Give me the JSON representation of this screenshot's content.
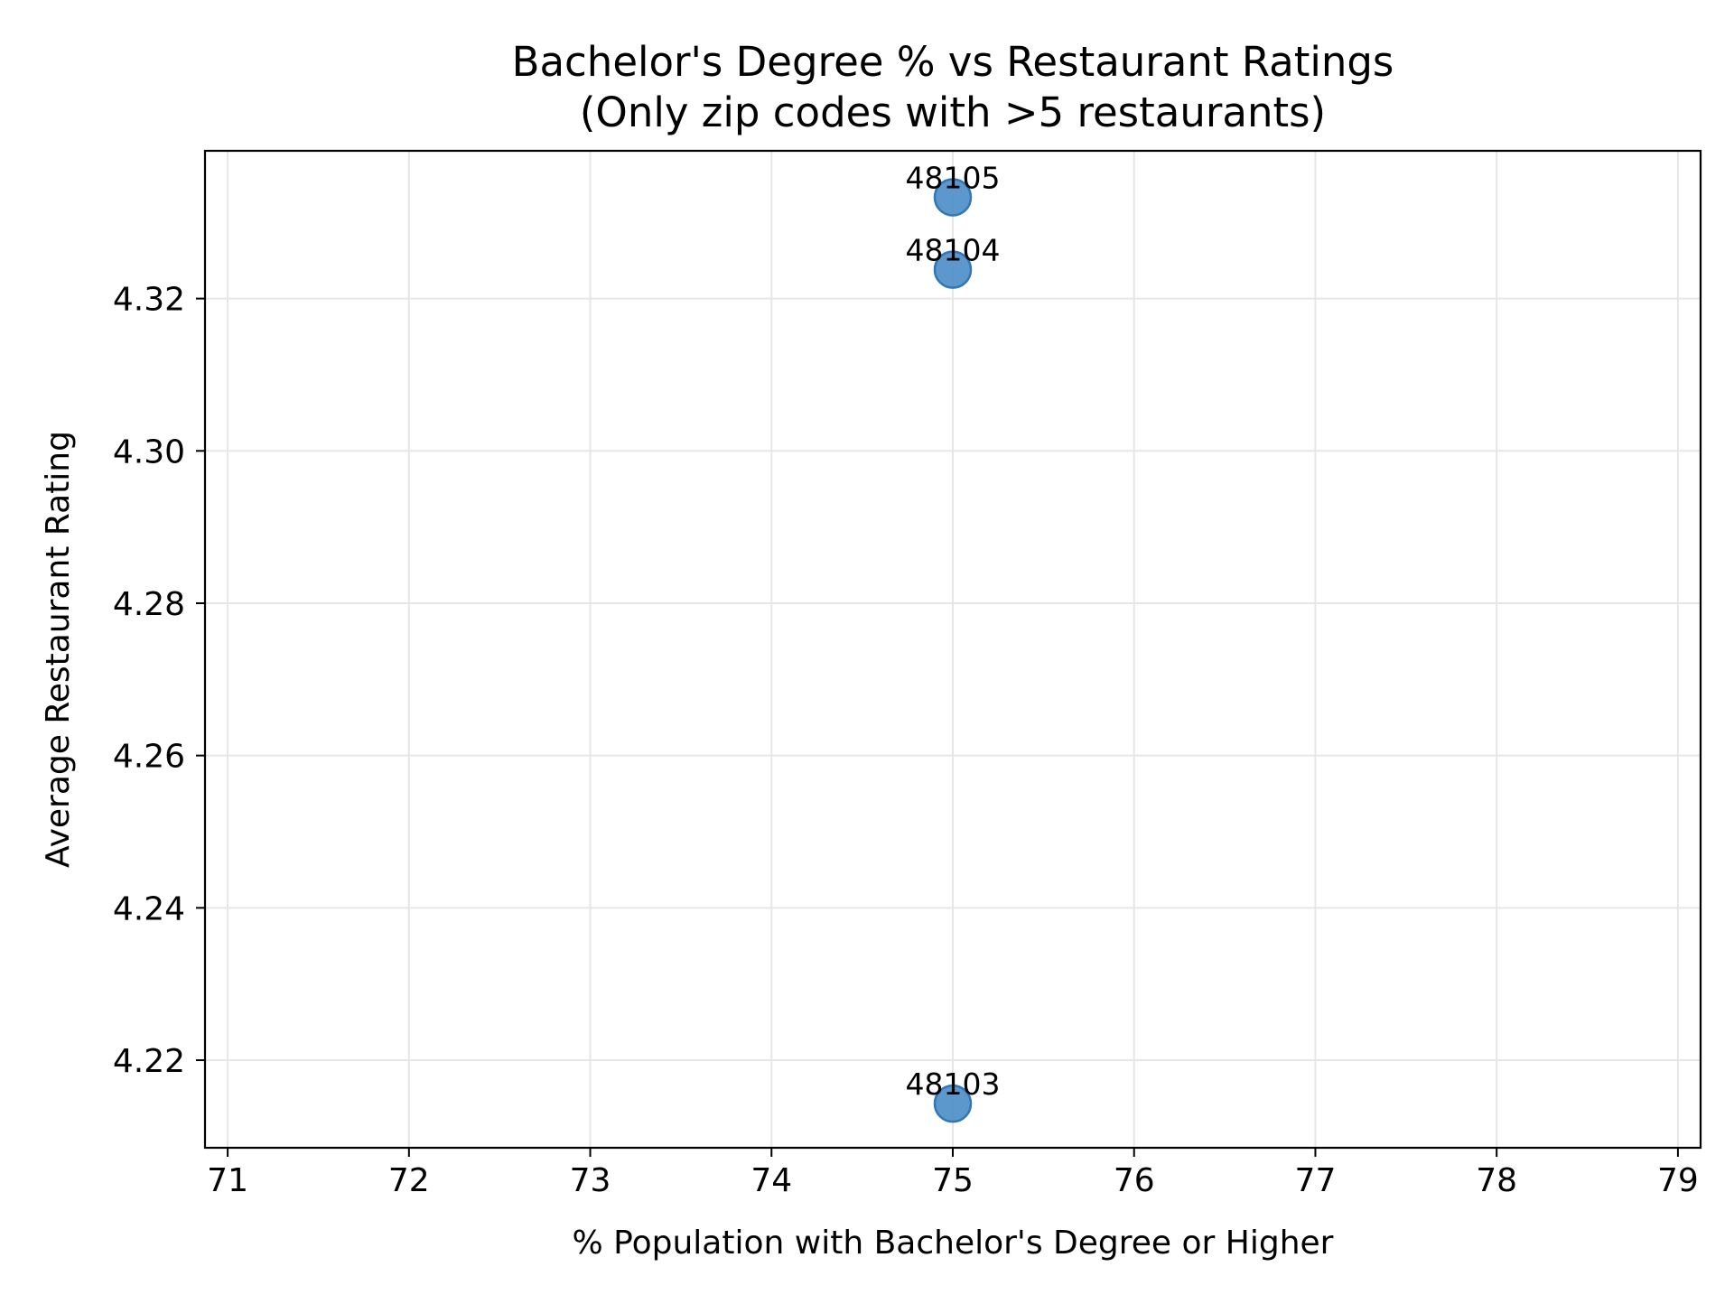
{
  "chart_data": {
    "type": "scatter",
    "title": "Bachelor's Degree % vs Restaurant Ratings",
    "subtitle": "(Only zip codes with >5 restaurants)",
    "xlabel": "% Population with Bachelor's Degree or Higher",
    "ylabel": "Average Restaurant Rating",
    "xlim": [
      70.875,
      79.125
    ],
    "ylim": [
      4.2085,
      4.3394
    ],
    "xticks": [
      71,
      72,
      73,
      74,
      75,
      76,
      77,
      78,
      79
    ],
    "yticks": [
      4.22,
      4.24,
      4.26,
      4.28,
      4.3,
      4.32
    ],
    "ytick_labels": [
      "4.22",
      "4.24",
      "4.26",
      "4.28",
      "4.30",
      "4.32"
    ],
    "grid": true,
    "legend": false,
    "colors": {
      "point_fill": "#4e8fc7",
      "point_edge": "#2f77b8",
      "grid": "#e6e6e6",
      "axis": "#000000"
    },
    "points": [
      {
        "x": 75,
        "y": 4.3333,
        "label": "48105"
      },
      {
        "x": 75,
        "y": 4.3238,
        "label": "48104"
      },
      {
        "x": 75,
        "y": 4.2143,
        "label": "48103"
      }
    ]
  }
}
